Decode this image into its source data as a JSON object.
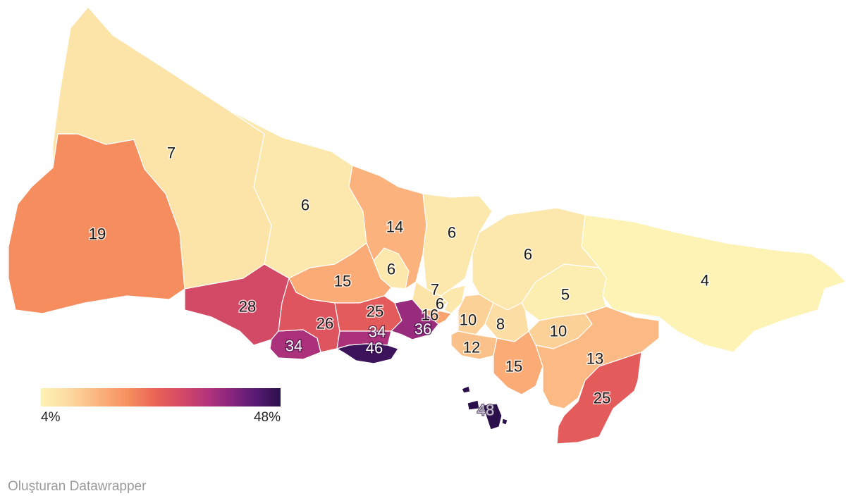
{
  "map": {
    "legend": {
      "min_label": "4%",
      "max_label": "48%",
      "min_value": 4,
      "max_value": 48,
      "color_stops": [
        "#fcf3b4",
        "#fcd9a0",
        "#fbb47e",
        "#f6905f",
        "#ea6355",
        "#d14768",
        "#b1337b",
        "#85247e",
        "#561a73",
        "#2b0f4a"
      ]
    },
    "regions": [
      {
        "id": "catalca",
        "label": "19",
        "value": 19
      },
      {
        "id": "arnavutkoy",
        "label": "7",
        "value": 7
      },
      {
        "id": "eyupsultan",
        "label": "6",
        "value": 6
      },
      {
        "id": "sariyer",
        "label": "6",
        "value": 6
      },
      {
        "id": "beykoz",
        "label": "6",
        "value": 6
      },
      {
        "id": "sile",
        "label": "4",
        "value": 4
      },
      {
        "id": "gaziosmanpasa",
        "label": "14",
        "value": 14
      },
      {
        "id": "kagithane",
        "label": "6",
        "value": 6
      },
      {
        "id": "besiktas",
        "label": "7",
        "value": 7
      },
      {
        "id": "sisli",
        "label": "6",
        "value": 6
      },
      {
        "id": "basaksehir",
        "label": "15",
        "value": 15
      },
      {
        "id": "silivri",
        "label": "28",
        "value": 28
      },
      {
        "id": "buyukcekmece",
        "label": "34",
        "value": 34
      },
      {
        "id": "esenyurt",
        "label": "26",
        "value": 26
      },
      {
        "id": "kucukcekmece",
        "label": "46",
        "value": 46
      },
      {
        "id": "bagcilar",
        "label": "25",
        "value": 25
      },
      {
        "id": "bahcelievler",
        "label": "34",
        "value": 34
      },
      {
        "id": "zeytinburnu",
        "label": "36",
        "value": 36
      },
      {
        "id": "beyoglu",
        "label": "16",
        "value": 16
      },
      {
        "id": "uskudar",
        "label": "10",
        "value": 10
      },
      {
        "id": "umraniye",
        "label": "8",
        "value": 8
      },
      {
        "id": "cekmekoy",
        "label": "5",
        "value": 5
      },
      {
        "id": "sancaktepe",
        "label": "10",
        "value": 10
      },
      {
        "id": "kadikoy",
        "label": "12",
        "value": 12
      },
      {
        "id": "maltepe",
        "label": "15",
        "value": 15
      },
      {
        "id": "pendik",
        "label": "13",
        "value": 13
      },
      {
        "id": "tuzla",
        "label": "25",
        "value": 25
      },
      {
        "id": "adalar",
        "label": "48",
        "value": 48
      }
    ]
  },
  "footer": {
    "credit": "Oluşturan Datawrapper"
  }
}
